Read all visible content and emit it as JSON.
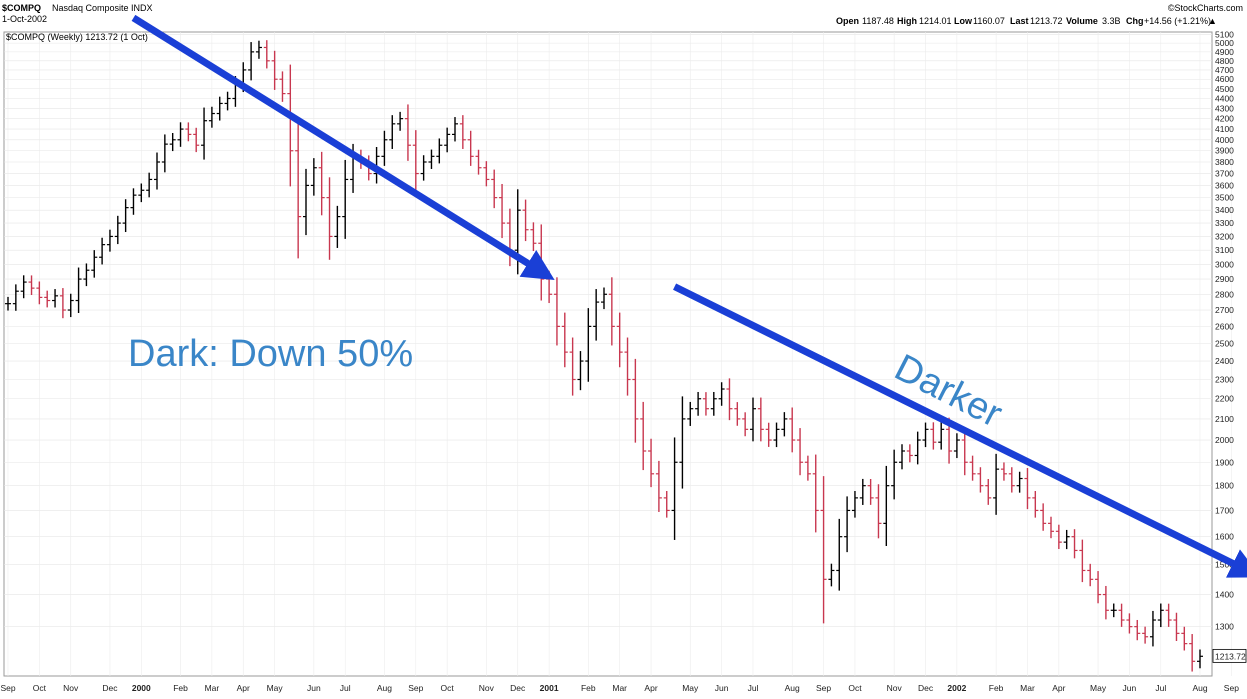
{
  "header": {
    "symbol": "$COMPQ",
    "name": "Nasdaq Composite INDX",
    "date": "1-Oct-2002",
    "source": "©StockCharts.com",
    "quote": {
      "open_label": "Open",
      "open": "1187.48",
      "high_label": "High",
      "high": "1214.01",
      "low_label": "Low",
      "low": "1160.07",
      "last_label": "Last",
      "last": "1213.72",
      "volume_label": "Volume",
      "volume": "3.3B",
      "chg_label": "Chg",
      "chg": "+14.56 (+1.21%)"
    },
    "series_label": "$COMPQ (Weekly) 1213.72 (1 Oct)"
  },
  "annotations": {
    "dark": "Dark: Down 50%",
    "darker": "Darker"
  },
  "colors": {
    "up_bar": "#000000",
    "down_bar": "#c8374f",
    "arrow": "#1a3fd6",
    "annotation_text": "#3a86c8"
  },
  "chart_data": {
    "type": "ohlc-bar",
    "title": "$COMPQ (Weekly) 1213.72 (1 Oct)",
    "ylim": [
      1160,
      5130
    ],
    "y_ticks": [
      1300,
      1400,
      1500,
      1600,
      1700,
      1800,
      1900,
      2000,
      2100,
      2200,
      2300,
      2400,
      2500,
      2600,
      2700,
      2800,
      2900,
      3000,
      3100,
      3200,
      3300,
      3400,
      3500,
      3600,
      3700,
      3800,
      3900,
      4000,
      4100,
      4200,
      4300,
      4400,
      4500,
      4600,
      4700,
      4800,
      4900,
      5000,
      5100
    ],
    "last_value_label": "1213.72",
    "x_ticks": [
      {
        "label": "Sep",
        "week": 0
      },
      {
        "label": "Oct",
        "week": 4
      },
      {
        "label": "Nov",
        "week": 8
      },
      {
        "label": "Dec",
        "week": 13
      },
      {
        "label": "2000",
        "week": 17,
        "bold": true
      },
      {
        "label": "Feb",
        "week": 22
      },
      {
        "label": "Mar",
        "week": 26
      },
      {
        "label": "Apr",
        "week": 30
      },
      {
        "label": "May",
        "week": 34
      },
      {
        "label": "Jun",
        "week": 39
      },
      {
        "label": "Jul",
        "week": 43
      },
      {
        "label": "Aug",
        "week": 48
      },
      {
        "label": "Sep",
        "week": 52
      },
      {
        "label": "Oct",
        "week": 56
      },
      {
        "label": "Nov",
        "week": 61
      },
      {
        "label": "Dec",
        "week": 65
      },
      {
        "label": "2001",
        "week": 69,
        "bold": true
      },
      {
        "label": "Feb",
        "week": 74
      },
      {
        "label": "Mar",
        "week": 78
      },
      {
        "label": "Apr",
        "week": 82
      },
      {
        "label": "May",
        "week": 87
      },
      {
        "label": "Jun",
        "week": 91
      },
      {
        "label": "Jul",
        "week": 95
      },
      {
        "label": "Aug",
        "week": 100
      },
      {
        "label": "Sep",
        "week": 104
      },
      {
        "label": "Oct",
        "week": 108
      },
      {
        "label": "Nov",
        "week": 113
      },
      {
        "label": "Dec",
        "week": 117
      },
      {
        "label": "2002",
        "week": 121,
        "bold": true
      },
      {
        "label": "Feb",
        "week": 126
      },
      {
        "label": "Mar",
        "week": 130
      },
      {
        "label": "Apr",
        "week": 134
      },
      {
        "label": "May",
        "week": 139
      },
      {
        "label": "Jun",
        "week": 143
      },
      {
        "label": "Jul",
        "week": 147
      },
      {
        "label": "Aug",
        "week": 152
      },
      {
        "label": "Sep",
        "week": 156
      }
    ],
    "weekly_close": [
      2740,
      2820,
      2880,
      2840,
      2780,
      2760,
      2790,
      2700,
      2760,
      2900,
      2960,
      3050,
      3140,
      3200,
      3300,
      3420,
      3520,
      3560,
      3650,
      3800,
      3960,
      4000,
      4100,
      4050,
      3950,
      4180,
      4250,
      4350,
      4400,
      4550,
      4700,
      4900,
      4950,
      4800,
      4600,
      4450,
      3900,
      3350,
      3600,
      3750,
      3500,
      3200,
      3350,
      3650,
      3850,
      3800,
      3700,
      3850,
      4000,
      4150,
      4200,
      3950,
      3700,
      3800,
      3850,
      3950,
      4050,
      4150,
      4000,
      3850,
      3750,
      3650,
      3500,
      3300,
      3100,
      3400,
      3250,
      3150,
      2900,
      2800,
      2600,
      2450,
      2300,
      2400,
      2600,
      2750,
      2800,
      2600,
      2450,
      2300,
      2100,
      1950,
      1850,
      1750,
      1700,
      1900,
      2100,
      2150,
      2200,
      2150,
      2200,
      2250,
      2150,
      2100,
      2050,
      2150,
      2050,
      2000,
      2050,
      2100,
      2000,
      1900,
      1850,
      1700,
      1450,
      1480,
      1600,
      1700,
      1750,
      1800,
      1750,
      1650,
      1800,
      1900,
      1950,
      1930,
      2000,
      2050,
      1990,
      2050,
      1950,
      2000,
      1900,
      1850,
      1800,
      1750,
      1870,
      1850,
      1800,
      1830,
      1750,
      1700,
      1650,
      1620,
      1580,
      1600,
      1550,
      1480,
      1450,
      1400,
      1350,
      1350,
      1320,
      1300,
      1280,
      1270,
      1320,
      1350,
      1320,
      1280,
      1250,
      1200,
      1214
    ],
    "arrows": [
      {
        "name": "dark-arrow",
        "from_week": 16,
        "from_value": 5300,
        "to_week": 68,
        "to_value": 2950
      },
      {
        "name": "darker-arrow",
        "from_week": 85,
        "from_value": 2850,
        "to_week": 158,
        "to_value": 1480
      }
    ]
  }
}
